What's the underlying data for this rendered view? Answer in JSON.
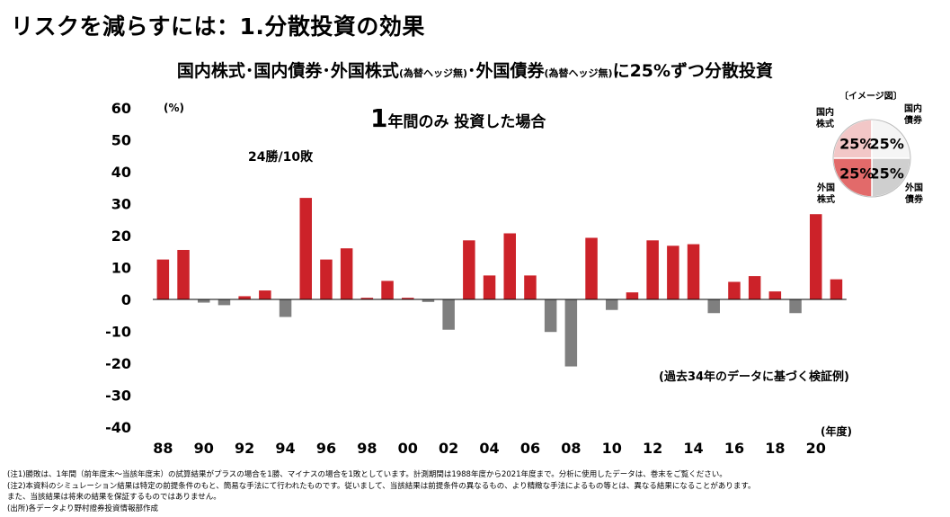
{
  "page_title": "リスクを減らすには：1.分散投資の効果",
  "chart_title": {
    "part1": "国内株式･国内債券･外国株式",
    "note1": "(為替ヘッジ無)",
    "part2": "･外国債券",
    "note2": "(為替ヘッジ無)",
    "part3": "に25%ずつ分散投資"
  },
  "pie_legend": {
    "caption": "〔イメージ図〕",
    "slices": [
      {
        "label": "国内株式",
        "value": 25,
        "value_label": "25%",
        "color": "#f2c7c7"
      },
      {
        "label": "国内債券",
        "value": 25,
        "value_label": "25%",
        "color": "#f5f5f5"
      },
      {
        "label": "外国債券",
        "value": 25,
        "value_label": "25%",
        "color": "#cfcfcf"
      },
      {
        "label": "外国株式",
        "value": 25,
        "value_label": "25%",
        "color": "#e26a6a"
      }
    ]
  },
  "chart_data": {
    "type": "bar",
    "subtitle": "1年間のみ 投資した場合",
    "annotation_winloss": "24勝/10敗",
    "annotation_source": "(過去34年のデータに基づく検証例)",
    "ylabel": "(%)",
    "xlabel": "(年度)",
    "ylim": [
      -40,
      60
    ],
    "yticks": [
      60,
      50,
      40,
      30,
      20,
      10,
      0,
      -10,
      -20,
      -30,
      -40
    ],
    "xtick_labels": [
      "88",
      "90",
      "92",
      "94",
      "96",
      "98",
      "00",
      "02",
      "04",
      "06",
      "08",
      "10",
      "12",
      "14",
      "16",
      "18",
      "20"
    ],
    "categories": [
      "1988",
      "1989",
      "1990",
      "1991",
      "1992",
      "1993",
      "1994",
      "1995",
      "1996",
      "1997",
      "1998",
      "1999",
      "2000",
      "2001",
      "2002",
      "2003",
      "2004",
      "2005",
      "2006",
      "2007",
      "2008",
      "2009",
      "2010",
      "2011",
      "2012",
      "2013",
      "2014",
      "2015",
      "2016",
      "2017",
      "2018",
      "2019",
      "2020",
      "2021"
    ],
    "values": [
      12.5,
      15.5,
      -1.0,
      -1.8,
      1.0,
      2.8,
      -5.5,
      31.8,
      12.5,
      16.0,
      0.5,
      5.8,
      0.5,
      -0.8,
      -9.5,
      18.5,
      7.5,
      20.7,
      7.5,
      -10.2,
      -21.0,
      19.3,
      -3.3,
      2.2,
      18.5,
      16.8,
      17.3,
      -4.3,
      5.5,
      7.3,
      2.5,
      -4.3,
      26.7,
      6.3
    ],
    "colors": {
      "positive": "#cc2229",
      "negative": "#7f7f7f"
    },
    "grid": false
  },
  "notes": [
    "(注1)勝敗は、1年間（前年度末～当該年度末）の試算結果がプラスの場合を1勝、マイナスの場合を1敗としています。計測期間は1988年度から2021年度まで。分析に使用したデータは、巻末をご覧ください。",
    "(注2)本資料のシミュレーション結果は特定の前提条件のもと、簡易な手法にて行われたものです。従いまして、当該結果は前提条件の異なるもの、より精緻な手法によるもの等とは、異なる結果になることがあります。",
    "また、当該結果は将来の結果を保証するものではありません。",
    "(出所)各データより野村證券投資情報部作成"
  ]
}
